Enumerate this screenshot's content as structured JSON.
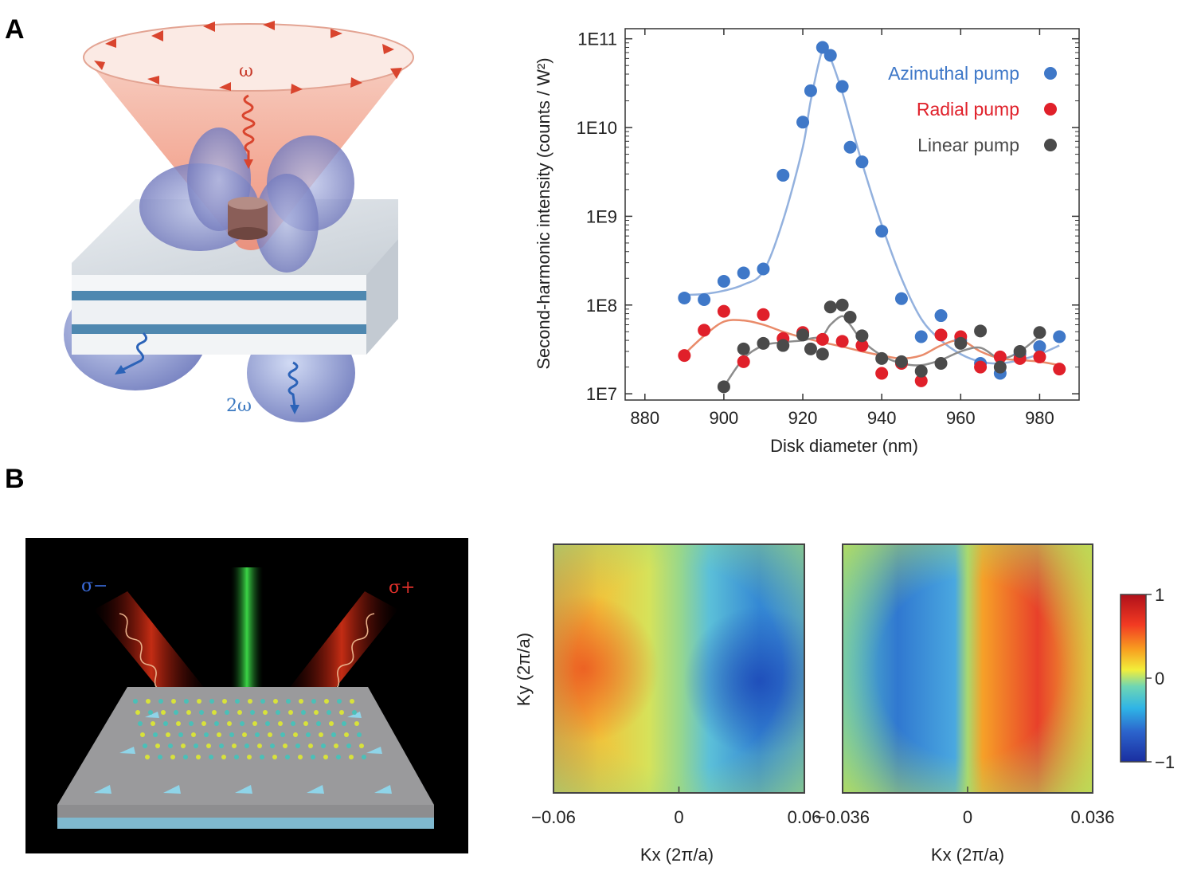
{
  "figure": {
    "panel_a_label": "A",
    "panel_b_label": "B",
    "illustration_a": {
      "omega_label": "ω",
      "two_omega_label": "2ω"
    },
    "illustration_b": {
      "sigma_minus_label": "σ−",
      "sigma_plus_label": "σ+"
    }
  },
  "chart_data": [
    {
      "type": "scatter",
      "title": "",
      "xlabel": "Disk diameter (nm)",
      "ylabel": "Second-harmonic intensity (counts / W²)",
      "yscale": "log",
      "xlim": [
        875,
        990
      ],
      "ylim": [
        8500000,
        130000000000
      ],
      "xticks": [
        880,
        900,
        920,
        940,
        960,
        980
      ],
      "yticks": [
        10000000,
        100000000,
        1000000000,
        10000000000,
        100000000000
      ],
      "ytick_labels": [
        "1E7",
        "1E8",
        "1E9",
        "1E10",
        "1E11"
      ],
      "legend_position": "top-right",
      "series": [
        {
          "name": "Azimuthal pump",
          "color": "#3f78c8",
          "line_color": "#93b1de",
          "x": [
            890,
            895,
            900,
            905,
            910,
            915,
            920,
            922,
            925,
            927,
            930,
            932,
            935,
            940,
            945,
            950,
            955,
            960,
            965,
            970,
            975,
            980,
            985
          ],
          "y": [
            120000000,
            115000000,
            185000000,
            230000000,
            255000000,
            2900000000,
            11500000000,
            26000000000,
            80000000000,
            65000000000,
            29000000000,
            6000000000,
            4100000000,
            680000000,
            118000000,
            44000000,
            76000000,
            40000000,
            22000000,
            17000000,
            28000000,
            34000000,
            44000000
          ],
          "fit_y": [
            130000000,
            133000000,
            145000000,
            170000000,
            240000000,
            900000000,
            6000000000,
            20000000000,
            75000000000,
            60000000000,
            25000000000,
            12000000000,
            4000000000,
            800000000,
            200000000,
            70000000,
            40000000,
            28000000,
            23000000,
            22000000,
            24000000,
            28000000,
            35000000
          ]
        },
        {
          "name": "Radial pump",
          "color": "#e0202a",
          "line_color": "#e98b6a",
          "x": [
            890,
            895,
            900,
            905,
            910,
            915,
            920,
            925,
            930,
            935,
            940,
            945,
            950,
            955,
            960,
            965,
            970,
            975,
            980,
            985
          ],
          "y": [
            27000000,
            52000000,
            85000000,
            23000000,
            78000000,
            42000000,
            49000000,
            41000000,
            39000000,
            35000000,
            17000000,
            22000000,
            14000000,
            46000000,
            44000000,
            20000000,
            26000000,
            25000000,
            26000000,
            19000000
          ],
          "fit_y": [
            28000000,
            45000000,
            65000000,
            67000000,
            60000000,
            50000000,
            43000000,
            38000000,
            34000000,
            30000000,
            27000000,
            25000000,
            27000000,
            35000000,
            40000000,
            30000000,
            25000000,
            24000000,
            23000000,
            21000000
          ]
        },
        {
          "name": "Linear pump",
          "color": "#4a4a4a",
          "line_color": "#8c8c8c",
          "x": [
            900,
            905,
            910,
            915,
            920,
            922,
            925,
            927,
            930,
            932,
            935,
            940,
            945,
            950,
            955,
            960,
            965,
            970,
            975,
            980
          ],
          "y": [
            12000000,
            32000000,
            37000000,
            35000000,
            46000000,
            32000000,
            28000000,
            95000000,
            100000000,
            73000000,
            45000000,
            25000000,
            23000000,
            18000000,
            22000000,
            37000000,
            51000000,
            20000000,
            30000000,
            49000000
          ],
          "fit_y": [
            12000000,
            25000000,
            35000000,
            38000000,
            40000000,
            42000000,
            45000000,
            60000000,
            75000000,
            60000000,
            40000000,
            27000000,
            22000000,
            21000000,
            24000000,
            30000000,
            33000000,
            25000000,
            30000000,
            45000000
          ]
        }
      ]
    },
    {
      "type": "heatmap",
      "title": "",
      "xlabel": "Kx (2π/a)",
      "ylabel": "Ky (2π/a)",
      "xlim": [
        -0.06,
        0.06
      ],
      "xtick_labels": [
        "−0.06",
        "0",
        "0.06"
      ],
      "xticks": [
        -0.06,
        0,
        0.06
      ]
    },
    {
      "type": "heatmap",
      "title": "",
      "xlabel": "Kx (2π/a)",
      "ylabel": "",
      "xlim": [
        -0.036,
        0.036
      ],
      "xtick_labels": [
        "−0.036",
        "0",
        "0.036"
      ],
      "xticks": [
        -0.036,
        0,
        0.036
      ],
      "colorbar": {
        "min": -1,
        "max": 1,
        "tick_labels": [
          "1",
          "0",
          "−1"
        ]
      }
    }
  ]
}
